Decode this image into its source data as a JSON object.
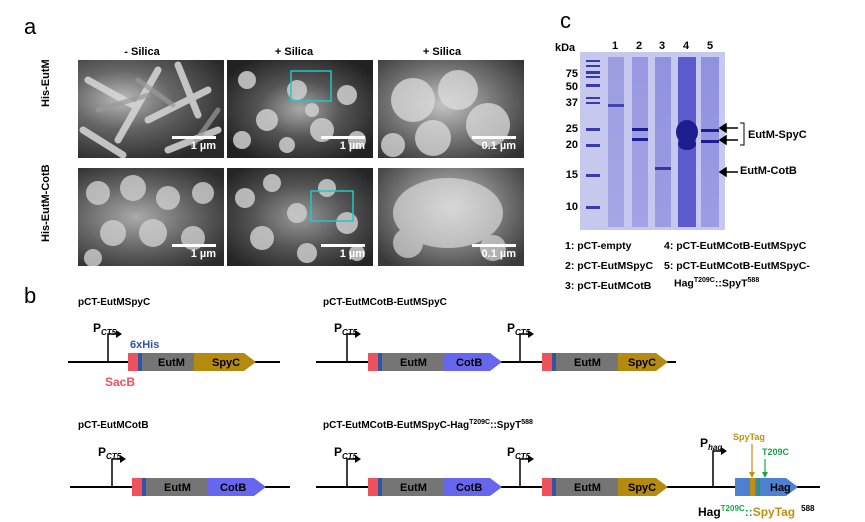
{
  "panels": {
    "a": "a",
    "b": "b",
    "c": "c"
  },
  "panel_a": {
    "col_labels": [
      "- Silica",
      "+ Silica",
      "+ Silica"
    ],
    "row_labels": [
      "His-EutM",
      "His-EutM-CotB"
    ],
    "scales": [
      "1 µm",
      "1 µm",
      "0.1 µm",
      "1 µm",
      "1 µm",
      "0.1 µm"
    ]
  },
  "panel_c": {
    "unit": "kDa",
    "markers": [
      "75",
      "50",
      "37",
      "25",
      "20",
      "15",
      "10"
    ],
    "lanes": [
      "1",
      "2",
      "3",
      "4",
      "5"
    ],
    "annotations": {
      "eutm_spyc": "EutM-SpyC",
      "eutm_cotb": "EutM-CotB"
    },
    "legend": [
      "1: pCT-empty",
      "2: pCT-EutMSpyC",
      "3: pCT-EutMCotB",
      "4: pCT-EutMCotB-EutMSpyC",
      "5: pCT-EutMCotB-EutMSpyC-",
      "Hag",
      "T209C",
      "::SpyT",
      "588"
    ]
  },
  "panel_b": {
    "titles": {
      "c1": "pCT-EutMSpyC",
      "c2": "pCT-EutMCotB-EutMSpyC",
      "c3": "pCT-EutMCotB",
      "c4": "pCT-EutMCotB-EutMSpyC-Hag",
      "c4_sup1": "T209C",
      "c4_mid": "::SpyT",
      "c4_sup2": "588"
    },
    "promoter": "P",
    "promoter_sub": "CT5",
    "hag_promoter_sub": "hag",
    "labels": {
      "his": "6xHis",
      "sacb": "SacB",
      "eutm": "EutM",
      "spyc": "SpyC",
      "cotb": "CotB",
      "hag": "Hag",
      "spytag": "SpyTag",
      "t209c": "T209C"
    },
    "footer": {
      "hag": "Hag",
      "sup": "T209C",
      "sep": "::",
      "spytag": "SpyTag",
      "num": "588"
    },
    "colors": {
      "sacb": "#f0515a",
      "his": "#2f55a8",
      "eutm": "#757575",
      "spyc": "#b48a10",
      "cotb": "#6767ee",
      "hag": "#4f7fd0",
      "spytag_text": "#c09010",
      "t209c_text": "#19a64a"
    }
  }
}
